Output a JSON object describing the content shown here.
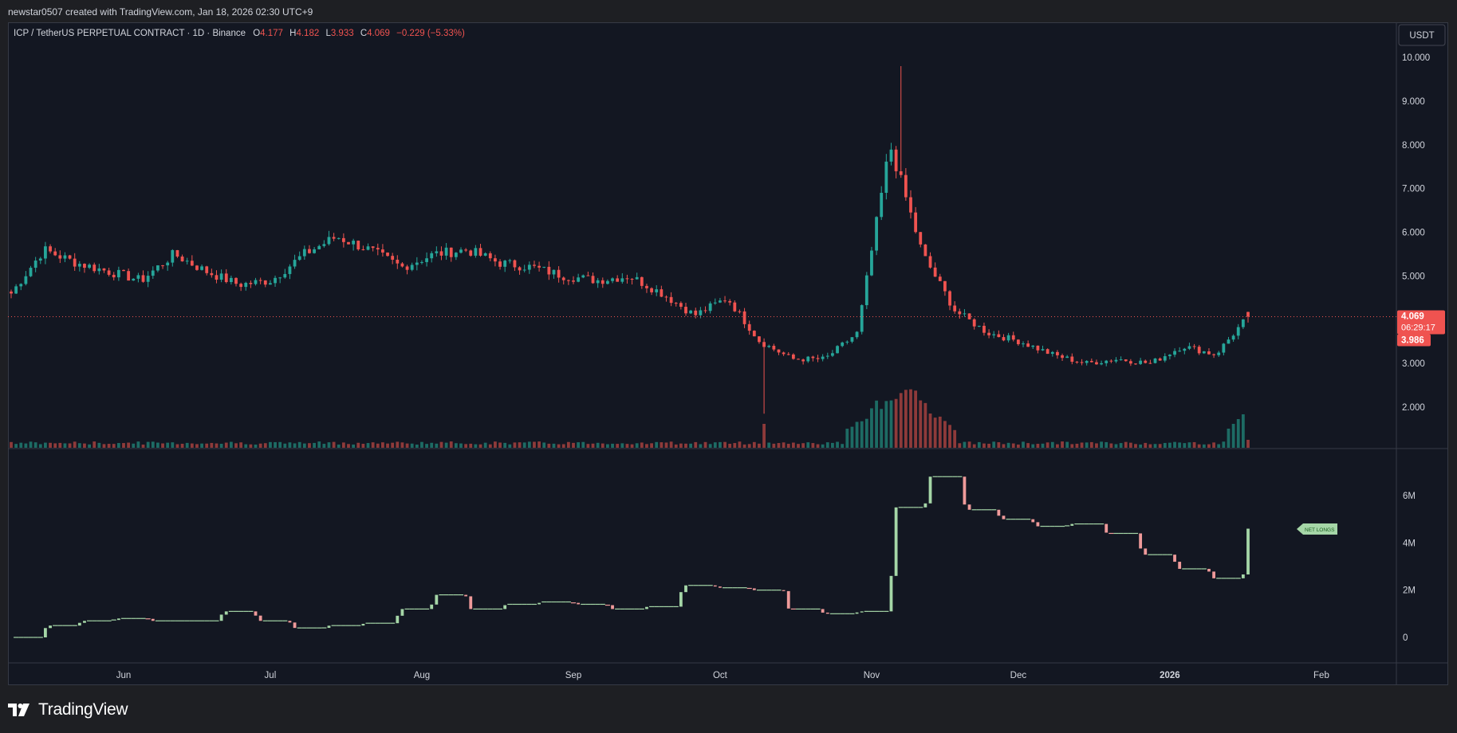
{
  "header": {
    "credit": "newstar0507 created with TradingView.com, Jan 18, 2026 02:30 UTC+9"
  },
  "legend": {
    "symbol": "ICP / TetherUS PERPETUAL CONTRACT · 1D · Binance",
    "o_label": "O",
    "o_value": "4.177",
    "h_label": "H",
    "h_value": "4.182",
    "l_label": "L",
    "l_value": "3.933",
    "c_label": "C",
    "c_value": "4.069",
    "change": "−0.229 (−5.33%)"
  },
  "price_axis": {
    "currency": "USDT",
    "current_price": "4.069",
    "countdown": "06:29:17",
    "low_tag": "3.986"
  },
  "net_longs_tag": "NET LONGS",
  "brand": "TradingView",
  "colors": {
    "up": "#26a69a",
    "down": "#ef5350",
    "up_volume": "#1d6b64",
    "down_volume": "#8e3a3a",
    "net_up": "#a5d6a7",
    "net_down": "#ef9a9a",
    "background": "#131722",
    "grid_text": "#d1d4dc"
  },
  "chart_data": [
    {
      "type": "candlestick",
      "title": "ICP / TetherUS PERPETUAL CONTRACT · 1D · Binance",
      "ylabel": "USDT",
      "ylim": [
        1.0,
        10.5
      ],
      "yticks": [
        "10.000",
        "9.000",
        "8.000",
        "7.000",
        "6.000",
        "5.000",
        "3.000",
        "2.000"
      ],
      "xticks": [
        "Jun",
        "Jul",
        "Aug",
        "Sep",
        "Oct",
        "Nov",
        "Dec",
        "2026",
        "Feb"
      ],
      "start_date": "2025-05-09",
      "last_date": "2026-01-17",
      "weekly_close": [
        4.6,
        5.6,
        5.3,
        5.1,
        4.9,
        5.5,
        5.1,
        4.8,
        4.9,
        5.5,
        5.9,
        5.6,
        5.2,
        5.5,
        5.6,
        5.3,
        5.2,
        5.0,
        4.9,
        5.0,
        4.6,
        4.1,
        4.5,
        3.5,
        3.1,
        3.1,
        3.7,
        8.0,
        5.5,
        4.2,
        3.7,
        3.5,
        3.2,
        3.0,
        3.1,
        3.0,
        3.4,
        3.2,
        4.07
      ],
      "last_candle": {
        "open": 4.177,
        "high": 4.182,
        "low": 3.933,
        "close": 4.069
      },
      "intraperiod_high": 9.8,
      "intraperiod_low": 1.85,
      "volume_spike_dates": [
        "2025-10-10",
        "2025-11-07",
        "2026-01-14"
      ]
    },
    {
      "type": "step",
      "title": "NET LONGS",
      "ylim": [
        -0.5,
        7.5
      ],
      "yticks": [
        "6M",
        "4M",
        "2M",
        "0"
      ],
      "unit": "M",
      "weekly_values": [
        0.0,
        0.5,
        0.7,
        0.8,
        0.7,
        0.7,
        1.1,
        0.7,
        0.4,
        0.5,
        0.6,
        1.2,
        1.8,
        1.2,
        1.4,
        1.5,
        1.4,
        1.2,
        1.3,
        2.2,
        2.1,
        2.0,
        1.2,
        1.0,
        1.1,
        5.5,
        6.8,
        5.4,
        5.0,
        4.7,
        4.8,
        4.4,
        3.5,
        2.9,
        2.5,
        4.6
      ],
      "last_value": 4.6
    }
  ]
}
